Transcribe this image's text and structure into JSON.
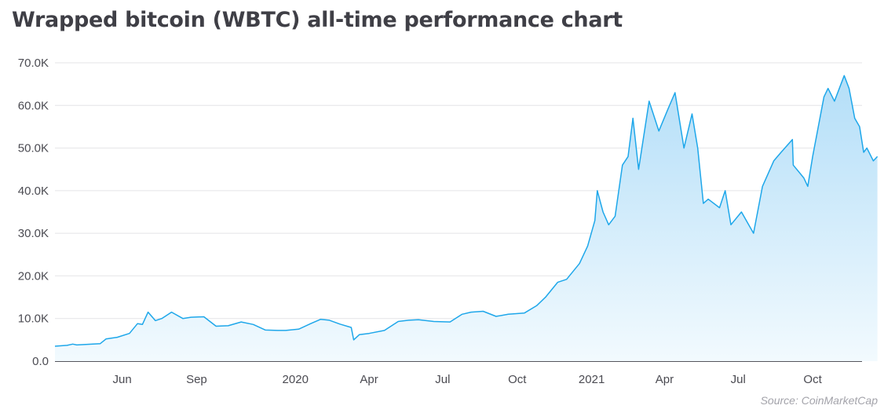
{
  "title": "Wrapped bitcoin (WBTC) all-time performance chart",
  "source": "Source: CoinMarketCap",
  "colors": {
    "line": "#1ea7ea",
    "fill_top": "#b3def8",
    "fill_bottom": "#f2fafe",
    "grid": "#e4e4e7",
    "axis": "#55555c"
  },
  "chart_data": {
    "type": "area",
    "title": "Wrapped bitcoin (WBTC) all-time performance chart",
    "xlabel": "",
    "ylabel": "",
    "ylim": [
      0,
      70000
    ],
    "yticks": [
      0,
      10000,
      20000,
      30000,
      40000,
      50000,
      60000,
      70000
    ],
    "ytick_labels": [
      "0.0",
      "10.0K",
      "20.0K",
      "30.0K",
      "40.0K",
      "50.0K",
      "60.0K",
      "70.0K"
    ],
    "xlim": [
      "2019-03-10",
      "2021-12-01"
    ],
    "xticks": [
      "2019-06-01",
      "2019-09-01",
      "2020-01-01",
      "2020-04-01",
      "2020-07-01",
      "2020-10-01",
      "2021-01-01",
      "2021-04-01",
      "2021-07-01",
      "2021-10-01"
    ],
    "xtick_labels": [
      "Jun",
      "Sep",
      "2020",
      "Apr",
      "Jul",
      "Oct",
      "2021",
      "Apr",
      "Jul",
      "Oct"
    ],
    "grid": true,
    "legend": "none",
    "series": [
      {
        "x": [
          "2019-03-10",
          "2019-03-25",
          "2019-04-01",
          "2019-04-06",
          "2019-05-05",
          "2019-05-12",
          "2019-05-26",
          "2019-06-10",
          "2019-06-20",
          "2019-06-26",
          "2019-07-03",
          "2019-07-12",
          "2019-07-20",
          "2019-08-01",
          "2019-08-15",
          "2019-08-25",
          "2019-09-10",
          "2019-09-25",
          "2019-10-10",
          "2019-10-26",
          "2019-11-10",
          "2019-11-25",
          "2019-12-10",
          "2019-12-20",
          "2020-01-05",
          "2020-01-20",
          "2020-02-01",
          "2020-02-12",
          "2020-02-25",
          "2020-03-10",
          "2020-03-13",
          "2020-03-20",
          "2020-04-01",
          "2020-04-20",
          "2020-05-07",
          "2020-05-20",
          "2020-06-01",
          "2020-06-20",
          "2020-07-10",
          "2020-07-25",
          "2020-08-05",
          "2020-08-20",
          "2020-09-05",
          "2020-09-20",
          "2020-10-10",
          "2020-10-25",
          "2020-11-05",
          "2020-11-20",
          "2020-12-01",
          "2020-12-17",
          "2020-12-27",
          "2021-01-05",
          "2021-01-08",
          "2021-01-15",
          "2021-01-22",
          "2021-01-30",
          "2021-02-08",
          "2021-02-15",
          "2021-02-21",
          "2021-02-28",
          "2021-03-13",
          "2021-03-25",
          "2021-04-05",
          "2021-04-14",
          "2021-04-25",
          "2021-05-05",
          "2021-05-12",
          "2021-05-19",
          "2021-05-25",
          "2021-06-08",
          "2021-06-15",
          "2021-06-22",
          "2021-07-05",
          "2021-07-20",
          "2021-07-31",
          "2021-08-14",
          "2021-08-23",
          "2021-09-06",
          "2021-09-07",
          "2021-09-20",
          "2021-09-25",
          "2021-10-01",
          "2021-10-08",
          "2021-10-15",
          "2021-10-20",
          "2021-10-28",
          "2021-11-09",
          "2021-11-15",
          "2021-11-22",
          "2021-11-28",
          "2021-12-03",
          "2021-12-07",
          "2021-12-15",
          "2021-12-20"
        ],
        "y": [
          3500,
          3700,
          4000,
          3800,
          4100,
          5200,
          5600,
          6500,
          8800,
          8600,
          11500,
          9500,
          10000,
          11500,
          10000,
          10300,
          10400,
          8200,
          8300,
          9200,
          8600,
          7300,
          7200,
          7200,
          7500,
          8800,
          9800,
          9600,
          8700,
          7900,
          5000,
          6200,
          6500,
          7200,
          9300,
          9600,
          9700,
          9300,
          9200,
          11000,
          11500,
          11700,
          10500,
          11000,
          11300,
          13000,
          15000,
          18500,
          19200,
          22900,
          27000,
          33000,
          40000,
          35000,
          32000,
          34000,
          46000,
          48000,
          57000,
          45000,
          61000,
          54000,
          59000,
          63000,
          50000,
          58000,
          50000,
          37000,
          38000,
          36000,
          40000,
          32000,
          35000,
          30000,
          41000,
          47000,
          49000,
          52000,
          46000,
          43000,
          41000,
          48000,
          55000,
          62000,
          64000,
          61000,
          67000,
          64000,
          57000,
          55000,
          49000,
          50000,
          47000,
          48000
        ]
      }
    ]
  }
}
